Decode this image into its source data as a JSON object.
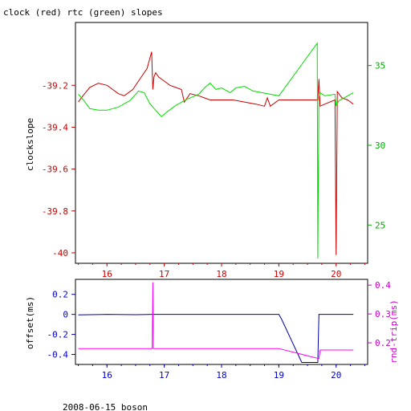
{
  "page": {
    "title": "clock (red) rtc (green) slopes",
    "footer": "2008-06-15 boson"
  },
  "colors": {
    "clock": "#cc0000",
    "rtc": "#00dd00",
    "offset": "#0000aa",
    "rndtrip": "#ff00ff",
    "left_axis_top": "#cc0000",
    "right_axis_top": "#00aa00",
    "left_axis_bottom": "#0000cc",
    "right_axis_bottom": "#cc00cc"
  },
  "chart_data": [
    {
      "type": "line",
      "title": "clock (red) rtc (green) slopes",
      "xlim": [
        15.45,
        20.55
      ],
      "x_ticks": [
        "16",
        "17",
        "18",
        "19",
        "20"
      ],
      "left_axis": {
        "label": "clockslope",
        "ylim": [
          -40.05,
          -38.9
        ],
        "ticks": [
          "-39.2",
          "-39.4",
          "-39.6",
          "-39.8",
          "-40"
        ]
      },
      "right_axis": {
        "label": "",
        "ylim": [
          22.6,
          37.7
        ],
        "ticks": [
          "35",
          "30",
          "25"
        ]
      },
      "series": [
        {
          "name": "clock",
          "axis": "left",
          "x": [
            15.5,
            15.58,
            15.7,
            15.85,
            16.0,
            16.1,
            16.2,
            16.3,
            16.45,
            16.55,
            16.7,
            16.78,
            16.8,
            16.82,
            16.85,
            16.9,
            17.0,
            17.1,
            17.2,
            17.3,
            17.35,
            17.45,
            17.6,
            17.8,
            18.0,
            18.2,
            18.4,
            18.6,
            18.75,
            18.8,
            18.85,
            19.0,
            19.3,
            19.68,
            19.7,
            19.72,
            19.8,
            19.98,
            20.0,
            20.02,
            20.1,
            20.2,
            20.3
          ],
          "y": [
            -39.28,
            -39.25,
            -39.21,
            -39.19,
            -39.2,
            -39.22,
            -39.24,
            -39.25,
            -39.22,
            -39.18,
            -39.12,
            -39.04,
            -39.22,
            -39.16,
            -39.14,
            -39.16,
            -39.18,
            -39.2,
            -39.21,
            -39.22,
            -39.28,
            -39.24,
            -39.25,
            -39.27,
            -39.27,
            -39.27,
            -39.28,
            -39.29,
            -39.3,
            -39.26,
            -39.3,
            -39.27,
            -39.27,
            -39.27,
            -39.17,
            -39.3,
            -39.29,
            -39.27,
            -40.01,
            -39.23,
            -39.26,
            -39.27,
            -39.29
          ]
        },
        {
          "name": "rtc",
          "axis": "right",
          "x": [
            15.5,
            15.6,
            15.7,
            15.85,
            16.0,
            16.2,
            16.4,
            16.55,
            16.65,
            16.75,
            16.85,
            16.95,
            17.05,
            17.2,
            17.4,
            17.6,
            17.7,
            17.8,
            17.9,
            18.0,
            18.15,
            18.25,
            18.4,
            18.55,
            18.7,
            18.85,
            19.0,
            19.67,
            19.68,
            19.7,
            19.72,
            19.8,
            19.98,
            20.0,
            20.05,
            20.15,
            20.3
          ],
          "y": [
            33.2,
            32.8,
            32.3,
            32.2,
            32.2,
            32.4,
            32.8,
            33.4,
            33.3,
            32.6,
            32.2,
            31.8,
            32.1,
            32.5,
            32.9,
            33.2,
            33.6,
            33.9,
            33.5,
            33.6,
            33.3,
            33.6,
            33.7,
            33.4,
            33.3,
            33.2,
            33.1,
            36.4,
            22.9,
            33.0,
            33.3,
            33.1,
            33.2,
            32.5,
            32.8,
            33.0,
            33.3
          ]
        }
      ]
    },
    {
      "type": "line",
      "title": "",
      "xlim": [
        15.45,
        20.55
      ],
      "x_ticks": [
        "16",
        "17",
        "18",
        "19",
        "20"
      ],
      "left_axis": {
        "label": "offset(ms)",
        "ylim": [
          -0.5,
          0.35
        ],
        "ticks": [
          "0.2",
          "0",
          "-0.2",
          "-0.4"
        ]
      },
      "right_axis": {
        "label": "rnd-trip(ms)",
        "ylim": [
          0.125,
          0.42
        ],
        "ticks": [
          "0.4",
          "0.3",
          "0.2"
        ]
      },
      "series": [
        {
          "name": "offset",
          "axis": "left",
          "x": [
            15.5,
            16.0,
            16.5,
            16.8,
            17.0,
            17.5,
            18.0,
            18.5,
            19.0,
            19.05,
            19.4,
            19.68,
            19.7,
            20.0,
            20.3
          ],
          "y": [
            -0.005,
            0.0,
            -0.003,
            0.0,
            0.0,
            0.0,
            0.0,
            0.0,
            0.0,
            -0.05,
            -0.48,
            -0.48,
            0.0,
            0.0,
            0.0
          ]
        },
        {
          "name": "rnd-trip",
          "axis": "right",
          "x": [
            15.5,
            16.0,
            16.5,
            16.79,
            16.8,
            16.81,
            17.0,
            17.5,
            18.0,
            18.5,
            19.0,
            19.7,
            19.72,
            20.0,
            20.3
          ],
          "y": [
            0.18,
            0.18,
            0.18,
            0.18,
            0.41,
            0.18,
            0.18,
            0.18,
            0.18,
            0.18,
            0.18,
            0.145,
            0.175,
            0.175,
            0.175
          ]
        }
      ]
    }
  ]
}
